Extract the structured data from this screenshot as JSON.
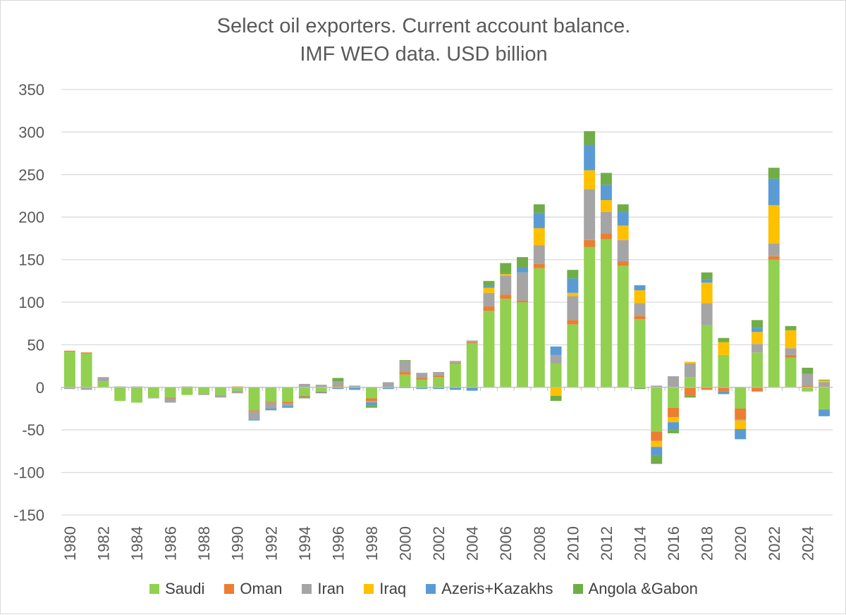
{
  "chart_data": {
    "type": "bar",
    "stacked": true,
    "title": "Select oil exporters.  Current account balance.",
    "subtitle": "IMF WEO data.  USD billion",
    "xlabel": "",
    "ylabel": "",
    "ylim": [
      -150,
      350
    ],
    "yticks": [
      -150,
      -100,
      -50,
      0,
      50,
      100,
      150,
      200,
      250,
      300,
      350
    ],
    "grid": true,
    "legend_position": "bottom",
    "categories": [
      "1980",
      "1981",
      "1982",
      "1983",
      "1984",
      "1985",
      "1986",
      "1987",
      "1988",
      "1989",
      "1990",
      "1991",
      "1992",
      "1993",
      "1994",
      "1995",
      "1996",
      "1997",
      "1998",
      "1999",
      "2000",
      "2001",
      "2002",
      "2003",
      "2004",
      "2005",
      "2006",
      "2007",
      "2008",
      "2009",
      "2010",
      "2011",
      "2012",
      "2013",
      "2014",
      "2015",
      "2016",
      "2017",
      "2018",
      "2019",
      "2020",
      "2021",
      "2022",
      "2023",
      "2024",
      "2025"
    ],
    "xtick_labels": [
      "1980",
      "1982",
      "1984",
      "1986",
      "1988",
      "1990",
      "1992",
      "1994",
      "1996",
      "1998",
      "2000",
      "2002",
      "2004",
      "2006",
      "2008",
      "2010",
      "2012",
      "2014",
      "2016",
      "2018",
      "2020",
      "2022",
      "2024"
    ],
    "series": [
      {
        "name": "Saudi",
        "color": "#92d050",
        "values": [
          42,
          40,
          7,
          -16,
          -18,
          -12,
          -12,
          -9,
          -7,
          -9,
          -4,
          -27,
          -17,
          -17,
          -10,
          -5,
          1,
          0,
          -13,
          0,
          15,
          9,
          12,
          28,
          52,
          90,
          104,
          100,
          140,
          28,
          74,
          165,
          174,
          143,
          80,
          -52,
          -24,
          12,
          73,
          38,
          -25,
          41,
          150,
          35,
          -5,
          -26
        ]
      },
      {
        "name": "Oman",
        "color": "#ed7d31",
        "values": [
          1,
          1,
          0,
          0,
          0,
          0,
          -1,
          0,
          0,
          0,
          1,
          -1,
          -1,
          -2,
          -1,
          -1,
          1,
          0,
          -3,
          0,
          3,
          2,
          2,
          1,
          1,
          5,
          5,
          2,
          5,
          0,
          5,
          8,
          7,
          5,
          4,
          -11,
          -11,
          -10,
          -3,
          -5,
          -13,
          -5,
          4,
          3,
          2,
          1
        ]
      },
      {
        "name": "Iran",
        "color": "#a5a5a5",
        "values": [
          -2,
          -3,
          5,
          1,
          1,
          -1,
          -5,
          1,
          -2,
          -3,
          -3,
          -10,
          -7,
          -3,
          4,
          3,
          5,
          2,
          -2,
          6,
          13,
          6,
          4,
          2,
          2,
          16,
          22,
          33,
          22,
          10,
          28,
          60,
          25,
          25,
          15,
          2,
          13,
          16,
          26,
          0,
          -1,
          10,
          15,
          8,
          14,
          5
        ]
      },
      {
        "name": "Iraq",
        "color": "#ffc000",
        "values": [
          0,
          0,
          0,
          0,
          0,
          0,
          0,
          0,
          0,
          0,
          0,
          0,
          0,
          0,
          0,
          0,
          0,
          0,
          0,
          0,
          0,
          0,
          0,
          0,
          0,
          6,
          2,
          0,
          20,
          -10,
          4,
          22,
          14,
          17,
          15,
          -7,
          -6,
          2,
          24,
          15,
          -10,
          14,
          45,
          21,
          0,
          2
        ]
      },
      {
        "name": "Azeris+Kazakhs",
        "color": "#5b9bd5",
        "values": [
          0,
          0,
          0,
          0,
          0,
          0,
          0,
          0,
          0,
          0,
          0,
          -1,
          -2,
          -2,
          -1,
          -1,
          -2,
          -3,
          -3,
          -2,
          -1,
          -2,
          -2,
          -3,
          -4,
          2,
          1,
          6,
          18,
          10,
          17,
          30,
          18,
          16,
          6,
          -10,
          -9,
          0,
          4,
          -3,
          -12,
          5,
          31,
          0,
          0,
          -8
        ]
      },
      {
        "name": "Angola &Gabon",
        "color": "#70ad47",
        "values": [
          0,
          0,
          0,
          0,
          0,
          0,
          0,
          0,
          0,
          0,
          0,
          0,
          0,
          0,
          -1,
          0,
          4,
          0,
          -3,
          0,
          1,
          0,
          0,
          0,
          0,
          6,
          12,
          12,
          10,
          -6,
          10,
          16,
          14,
          9,
          -2,
          -10,
          -4,
          -2,
          8,
          5,
          0,
          9,
          13,
          5,
          7,
          1
        ]
      }
    ]
  }
}
